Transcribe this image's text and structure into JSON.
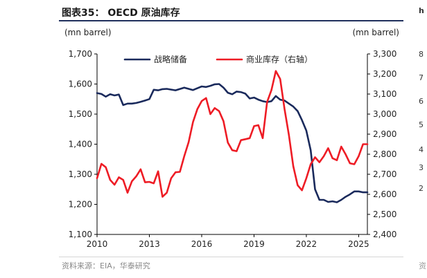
{
  "title": "图表35： OECD 原油库存",
  "source": "资料来源：EIA，华泰研究",
  "colors": {
    "strategic": "#1a2a5c",
    "commercial": "#ee1c25",
    "title_rule": "#1f2f5c"
  },
  "chart_data": {
    "type": "line",
    "title": "OECD 原油库存",
    "x_ticks": [
      "2010",
      "2013",
      "2016",
      "2019",
      "2022",
      "2025"
    ],
    "x_tick_values": [
      2010,
      2013,
      2016,
      2019,
      2022,
      2025
    ],
    "xlim": [
      2010,
      2025.5
    ],
    "y_left": {
      "label": "(mn barrel)",
      "lim": [
        1100,
        1700
      ],
      "ticks": [
        "1,100",
        "1,200",
        "1,300",
        "1,400",
        "1,500",
        "1,600",
        "1,700"
      ],
      "tick_values": [
        1100,
        1200,
        1300,
        1400,
        1500,
        1600,
        1700
      ]
    },
    "y_right": {
      "label": "(mn barrel)",
      "lim": [
        2400,
        3300
      ],
      "ticks": [
        "2,400",
        "2,500",
        "2,600",
        "2,700",
        "2,800",
        "2,900",
        "3,000",
        "3,100",
        "3,200",
        "3,300"
      ],
      "tick_values": [
        2400,
        2500,
        2600,
        2700,
        2800,
        2900,
        3000,
        3100,
        3200,
        3300
      ]
    },
    "grid": false,
    "legend_position": "top",
    "series": [
      {
        "name": "战略储备",
        "axis": "left",
        "color": "#1a2a5c",
        "x": [
          2010.0,
          2010.25,
          2010.5,
          2010.75,
          2011.0,
          2011.25,
          2011.5,
          2011.75,
          2012.0,
          2012.25,
          2012.5,
          2012.75,
          2013.0,
          2013.25,
          2013.5,
          2013.75,
          2014.0,
          2014.5,
          2015.0,
          2015.5,
          2016.0,
          2016.25,
          2016.5,
          2016.75,
          2017.0,
          2017.25,
          2017.5,
          2017.75,
          2018.0,
          2018.25,
          2018.5,
          2018.75,
          2019.0,
          2019.25,
          2019.5,
          2019.75,
          2020.0,
          2020.25,
          2020.5,
          2020.75,
          2021.0,
          2021.25,
          2021.5,
          2021.75,
          2022.0,
          2022.25,
          2022.5,
          2022.75,
          2023.0,
          2023.25,
          2023.5,
          2023.75,
          2024.0,
          2024.25,
          2024.5,
          2024.75,
          2025.0,
          2025.25,
          2025.5
        ],
        "values": [
          1570,
          1567,
          1558,
          1566,
          1562,
          1565,
          1530,
          1535,
          1535,
          1537,
          1541,
          1545,
          1550,
          1581,
          1579,
          1583,
          1584,
          1579,
          1588,
          1580,
          1592,
          1590,
          1594,
          1599,
          1600,
          1588,
          1571,
          1566,
          1575,
          1573,
          1568,
          1552,
          1555,
          1548,
          1543,
          1540,
          1543,
          1560,
          1548,
          1545,
          1535,
          1525,
          1510,
          1480,
          1445,
          1380,
          1250,
          1215,
          1215,
          1208,
          1210,
          1207,
          1215,
          1225,
          1233,
          1243,
          1243,
          1240,
          1240
        ]
      },
      {
        "name": "商业库存（右轴）",
        "axis": "right",
        "color": "#ee1c25",
        "x": [
          2010.0,
          2010.25,
          2010.5,
          2010.75,
          2011.0,
          2011.25,
          2011.5,
          2011.75,
          2012.0,
          2012.25,
          2012.5,
          2012.75,
          2013.0,
          2013.25,
          2013.5,
          2013.75,
          2014.0,
          2014.25,
          2014.5,
          2014.75,
          2015.0,
          2015.25,
          2015.5,
          2015.75,
          2016.0,
          2016.25,
          2016.5,
          2016.75,
          2017.0,
          2017.25,
          2017.5,
          2017.75,
          2018.0,
          2018.25,
          2018.5,
          2018.75,
          2019.0,
          2019.25,
          2019.5,
          2019.75,
          2020.0,
          2020.25,
          2020.5,
          2020.75,
          2021.0,
          2021.25,
          2021.5,
          2021.75,
          2022.0,
          2022.25,
          2022.5,
          2022.75,
          2023.0,
          2023.25,
          2023.5,
          2023.75,
          2024.0,
          2024.25,
          2024.5,
          2024.75,
          2025.0,
          2025.25,
          2025.5
        ],
        "values": [
          2680,
          2752,
          2735,
          2672,
          2648,
          2685,
          2672,
          2608,
          2665,
          2690,
          2725,
          2660,
          2662,
          2655,
          2715,
          2588,
          2608,
          2680,
          2710,
          2712,
          2790,
          2860,
          2960,
          3025,
          3065,
          3080,
          3000,
          3030,
          3015,
          2965,
          2858,
          2820,
          2815,
          2870,
          2875,
          2880,
          2940,
          2945,
          2880,
          3060,
          3120,
          3215,
          3175,
          3025,
          2895,
          2740,
          2645,
          2620,
          2680,
          2750,
          2785,
          2760,
          2790,
          2830,
          2780,
          2770,
          2838,
          2800,
          2755,
          2750,
          2790,
          2850,
          2850
        ]
      }
    ]
  },
  "neighbor_fragments": [
    "h",
    "8",
    "7",
    "6",
    "5",
    "4",
    "3",
    "2",
    "资"
  ]
}
